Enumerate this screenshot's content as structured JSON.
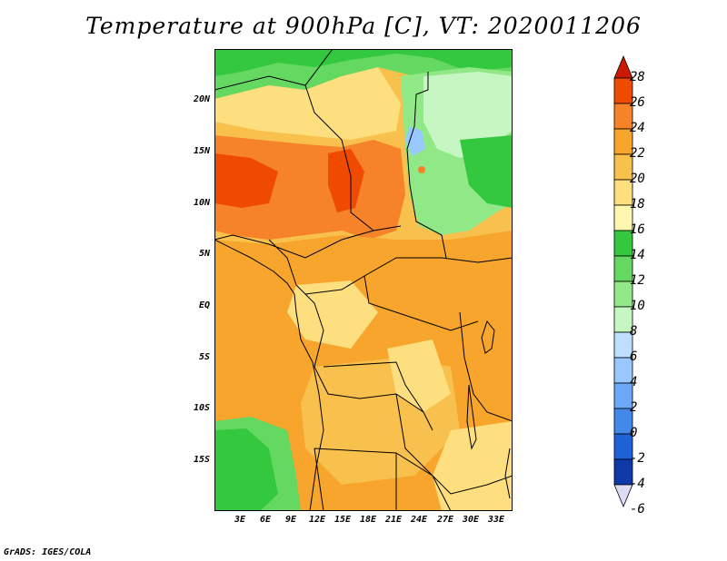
{
  "title": "Temperature at 900hPa [C], VT: 2020011206",
  "lat_ticks": [
    "20N",
    "15N",
    "10N",
    "5N",
    "EQ",
    "5S",
    "10S",
    "15S"
  ],
  "lon_ticks": [
    "3E",
    "6E",
    "9E",
    "12E",
    "15E",
    "18E",
    "21E",
    "24E",
    "27E",
    "30E",
    "33E"
  ],
  "colorbar": {
    "labels": [
      "28",
      "26",
      "24",
      "22",
      "20",
      "18",
      "16",
      "14",
      "12",
      "10",
      "8",
      "6",
      "4",
      "2",
      "0",
      "-2",
      "-4",
      "-6"
    ],
    "colors": [
      "#cc1a00",
      "#ee4a00",
      "#f6822a",
      "#f7a52c",
      "#f8c04c",
      "#fddf80",
      "#fef7b0",
      "#34c83e",
      "#64d860",
      "#90e886",
      "#c6f7c2",
      "#bedeff",
      "#98c8ff",
      "#6ba9f6",
      "#4488ea",
      "#1f62d8",
      "#0e3aa8",
      "#0a2070"
    ]
  },
  "credit": "GrADS: IGES/COLA"
}
